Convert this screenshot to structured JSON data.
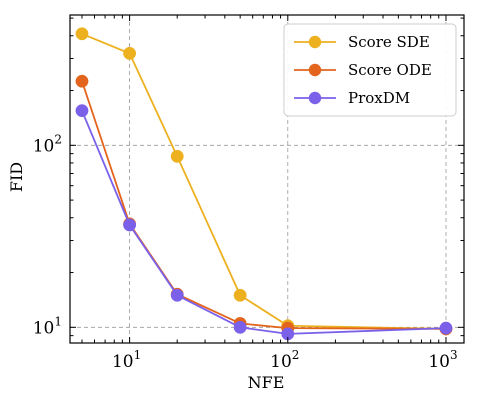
{
  "chart_data": {
    "type": "line",
    "xscale": "log",
    "yscale": "log",
    "xlabel": "NFE",
    "ylabel": "FID",
    "xlim": [
      4.2,
      1300
    ],
    "ylim": [
      8.2,
      520
    ],
    "grid": true,
    "legend_position": "top-right",
    "x_ticks": [
      {
        "value": 10,
        "base": "10",
        "exp": "1"
      },
      {
        "value": 100,
        "base": "10",
        "exp": "2"
      },
      {
        "value": 1000,
        "base": "10",
        "exp": "3"
      }
    ],
    "y_ticks": [
      {
        "value": 10,
        "base": "10",
        "exp": "1"
      },
      {
        "value": 100,
        "base": "10",
        "exp": "2"
      }
    ],
    "x": [
      5,
      10,
      20,
      50,
      100,
      1000
    ],
    "series": [
      {
        "name": "Score SDE",
        "color": "#EDB120",
        "values": [
          410,
          320,
          87,
          15,
          10.2,
          9.8
        ]
      },
      {
        "name": "Score ODE",
        "color": "#E3651D",
        "values": [
          225,
          37,
          15.2,
          10.5,
          9.9,
          9.8
        ]
      },
      {
        "name": "ProxDM",
        "color": "#7B61EA",
        "values": [
          155,
          36.5,
          15,
          10,
          9.2,
          9.9
        ]
      }
    ]
  }
}
